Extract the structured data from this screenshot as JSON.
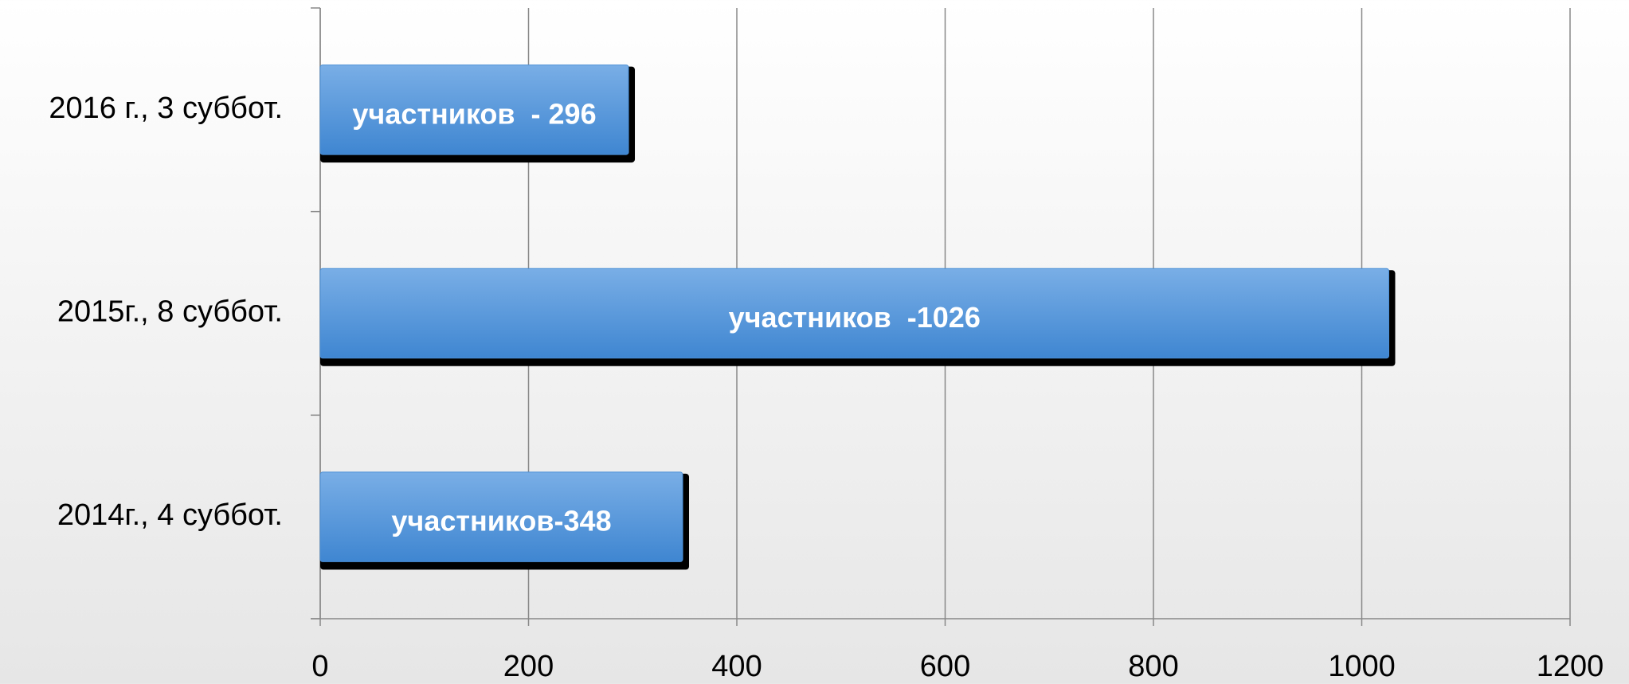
{
  "chart_data": {
    "type": "hbar",
    "categories": [
      "2016 г., 3 суббот.",
      "2015г., 8 суббот.",
      "2014г., 4 суббот."
    ],
    "values": [
      296,
      1026,
      348
    ],
    "value_labels": [
      "участников  - 296",
      "участников  -1026",
      "участников-348"
    ],
    "color": "#4a8fd6",
    "xlim": [
      0,
      1200
    ],
    "xticks": [
      0,
      200,
      400,
      600,
      800,
      1000,
      1200
    ],
    "grid": true
  }
}
